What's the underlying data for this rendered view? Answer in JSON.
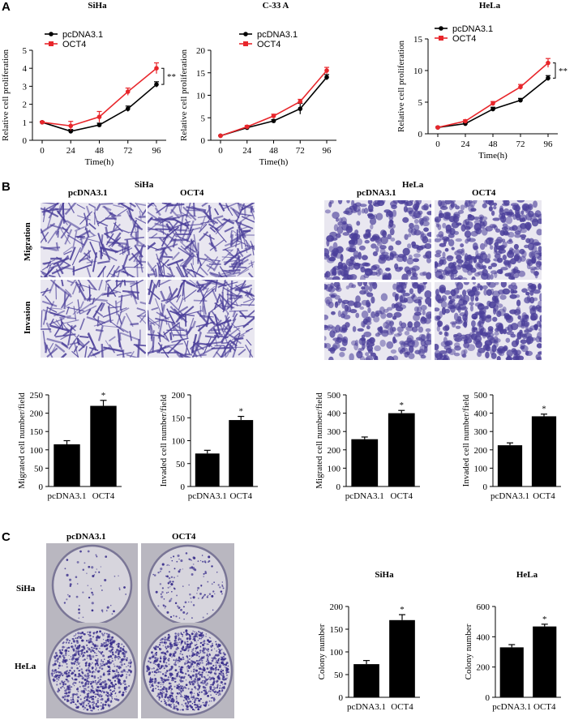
{
  "panels": {
    "a": "A",
    "b": "B",
    "c": "C"
  },
  "panel_b": {
    "groups": [
      {
        "title": "SiHa",
        "cols": [
          "pcDNA3.1",
          "OCT4"
        ]
      },
      {
        "title": "HeLa",
        "cols": [
          "pcDNA3.1",
          "OCT4"
        ]
      }
    ],
    "rows": [
      "Migration",
      "Invasion"
    ],
    "image_colors": {
      "background": "#e9e7f0",
      "stain": "#4b3f9a"
    }
  },
  "panel_c": {
    "cols": [
      "pcDNA3.1",
      "OCT4"
    ],
    "rows": [
      "SiHa",
      "HeLa"
    ],
    "plate_colors": {
      "plate": "#d7d5dd",
      "stain": "#3a2f8c"
    }
  },
  "colors": {
    "pcDNA": "#000000",
    "OCT4": "#e8262b",
    "bar": "#000000"
  },
  "chart_data": [
    {
      "id": "A1",
      "type": "line",
      "title": "SiHa",
      "x": [
        0,
        24,
        48,
        72,
        96
      ],
      "series": [
        {
          "name": "pcDNA3.1",
          "values": [
            1.0,
            0.5,
            0.85,
            1.75,
            3.1
          ],
          "err": [
            0.05,
            0.1,
            0.1,
            0.15,
            0.15
          ]
        },
        {
          "name": "OCT4",
          "values": [
            1.0,
            0.8,
            1.3,
            2.7,
            4.0
          ],
          "err": [
            0.05,
            0.25,
            0.3,
            0.2,
            0.3
          ]
        }
      ],
      "xlabel": "Time(h)",
      "ylabel": "Relative cell proliferation",
      "ylim": [
        0,
        5
      ],
      "yticks": [
        0,
        1,
        2,
        3,
        4,
        5
      ],
      "xticks": [
        0,
        24,
        48,
        72,
        96
      ],
      "significance": "**"
    },
    {
      "id": "A2",
      "type": "line",
      "title": "C-33 A",
      "x": [
        0,
        24,
        48,
        72,
        96
      ],
      "series": [
        {
          "name": "pcDNA3.1",
          "values": [
            1.0,
            2.8,
            4.3,
            7.0,
            14.0
          ],
          "err": [
            0.1,
            0.2,
            0.3,
            1.2,
            0.6
          ]
        },
        {
          "name": "OCT4",
          "values": [
            1.0,
            3.0,
            5.4,
            8.6,
            15.5
          ],
          "err": [
            0.1,
            0.3,
            0.4,
            0.5,
            0.7
          ]
        }
      ],
      "xlabel": "Time(h)",
      "ylabel": "Relative cell proliferation",
      "ylim": [
        0,
        20
      ],
      "yticks": [
        0,
        5,
        10,
        15,
        20
      ],
      "xticks": [
        0,
        24,
        48,
        72,
        96
      ],
      "significance": ""
    },
    {
      "id": "A3",
      "type": "line",
      "title": "HeLa",
      "x": [
        0,
        24,
        48,
        72,
        96
      ],
      "series": [
        {
          "name": "pcDNA3.1",
          "values": [
            1.0,
            1.6,
            3.9,
            5.3,
            8.8
          ],
          "err": [
            0.1,
            0.2,
            0.3,
            0.3,
            0.4
          ]
        },
        {
          "name": "OCT4",
          "values": [
            1.0,
            2.0,
            4.8,
            7.4,
            11.2
          ],
          "err": [
            0.1,
            0.2,
            0.3,
            0.4,
            0.7
          ]
        }
      ],
      "xlabel": "Time(h)",
      "ylabel": "Relative cell proliferation",
      "ylim": [
        0,
        15
      ],
      "yticks": [
        0,
        5,
        10,
        15
      ],
      "xticks": [
        0,
        24,
        48,
        72,
        96
      ],
      "significance": "**"
    },
    {
      "id": "B1",
      "type": "bar",
      "categories": [
        "pcDNA3.1",
        "OCT4"
      ],
      "values": [
        115,
        220
      ],
      "err": [
        10,
        15
      ],
      "significance": [
        "",
        "*"
      ],
      "ylabel": "Migrated cell number/field",
      "ylim": [
        0,
        250
      ],
      "yticks": [
        0,
        50,
        100,
        150,
        200,
        250
      ]
    },
    {
      "id": "B2",
      "type": "bar",
      "categories": [
        "pcDNA3.1",
        "OCT4"
      ],
      "values": [
        72,
        145
      ],
      "err": [
        7,
        8
      ],
      "significance": [
        "",
        "*"
      ],
      "ylabel": "Invaded cell number/field",
      "ylim": [
        0,
        200
      ],
      "yticks": [
        0,
        50,
        100,
        150,
        200
      ]
    },
    {
      "id": "B3",
      "type": "bar",
      "categories": [
        "pcDNA3.1",
        "OCT4"
      ],
      "values": [
        258,
        400
      ],
      "err": [
        12,
        15
      ],
      "significance": [
        "",
        "*"
      ],
      "ylabel": "Migrated cell number/field",
      "ylim": [
        0,
        500
      ],
      "yticks": [
        0,
        100,
        200,
        300,
        400,
        500
      ]
    },
    {
      "id": "B4",
      "type": "bar",
      "categories": [
        "pcDNA3.1",
        "OCT4"
      ],
      "values": [
        225,
        383
      ],
      "err": [
        13,
        12
      ],
      "significance": [
        "",
        "*"
      ],
      "ylabel": "Invaded cell number/field",
      "ylim": [
        0,
        500
      ],
      "yticks": [
        0,
        100,
        200,
        300,
        400,
        500
      ]
    },
    {
      "id": "C1",
      "type": "bar",
      "title": "SiHa",
      "categories": [
        "pcDNA3.1",
        "OCT4"
      ],
      "values": [
        73,
        170
      ],
      "err": [
        8,
        12
      ],
      "significance": [
        "",
        "*"
      ],
      "ylabel": "Colony number",
      "ylim": [
        0,
        200
      ],
      "yticks": [
        0,
        50,
        100,
        150,
        200
      ]
    },
    {
      "id": "C2",
      "type": "bar",
      "title": "HeLa",
      "categories": [
        "pcDNA3.1",
        "OCT4"
      ],
      "values": [
        330,
        468
      ],
      "err": [
        18,
        15
      ],
      "significance": [
        "",
        "*"
      ],
      "ylabel": "Colony number",
      "ylim": [
        0,
        600
      ],
      "yticks": [
        0,
        200,
        400,
        600
      ]
    }
  ]
}
